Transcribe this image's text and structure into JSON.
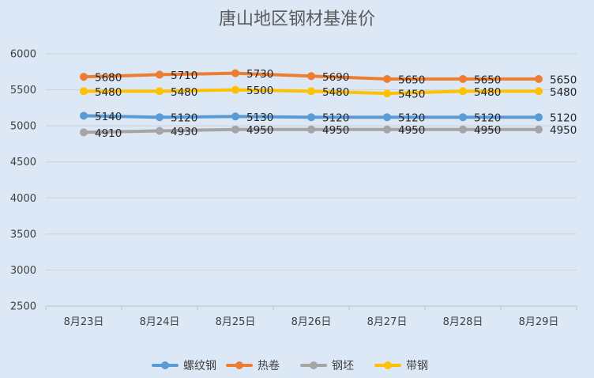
{
  "chart_data": {
    "type": "line",
    "title": "唐山地区钢材基准价",
    "categories": [
      "8月23日",
      "8月24日",
      "8月25日",
      "8月26日",
      "8月27日",
      "8月28日",
      "8月29日"
    ],
    "ylim": [
      2500,
      6000
    ],
    "yticks": [
      2500,
      3000,
      3500,
      4000,
      4500,
      5000,
      5500,
      6000
    ],
    "grid": true,
    "legend_position": "bottom",
    "series": [
      {
        "name": "螺纹钢",
        "color": "#5b9bd5",
        "values": [
          5140,
          5120,
          5130,
          5120,
          5120,
          5120,
          5120
        ]
      },
      {
        "name": "热卷",
        "color": "#ed7d31",
        "values": [
          5680,
          5710,
          5730,
          5690,
          5650,
          5650,
          5650
        ]
      },
      {
        "name": "钢坯",
        "color": "#a5a5a5",
        "values": [
          4910,
          4930,
          4950,
          4950,
          4950,
          4950,
          4950
        ]
      },
      {
        "name": "带钢",
        "color": "#ffc000",
        "values": [
          5480,
          5480,
          5500,
          5480,
          5450,
          5480,
          5480
        ]
      }
    ]
  }
}
